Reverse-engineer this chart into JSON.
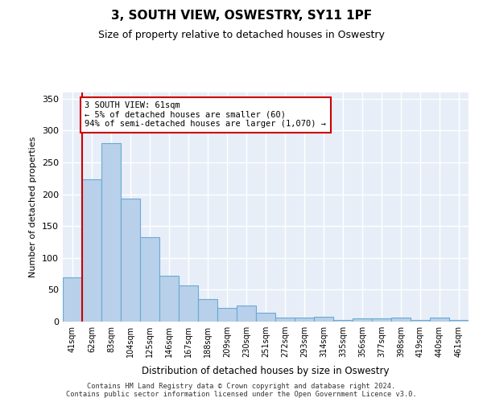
{
  "title": "3, SOUTH VIEW, OSWESTRY, SY11 1PF",
  "subtitle": "Size of property relative to detached houses in Oswestry",
  "xlabel": "Distribution of detached houses by size in Oswestry",
  "ylabel": "Number of detached properties",
  "categories": [
    "41sqm",
    "62sqm",
    "83sqm",
    "104sqm",
    "125sqm",
    "146sqm",
    "167sqm",
    "188sqm",
    "209sqm",
    "230sqm",
    "251sqm",
    "272sqm",
    "293sqm",
    "314sqm",
    "335sqm",
    "356sqm",
    "377sqm",
    "398sqm",
    "419sqm",
    "440sqm",
    "461sqm"
  ],
  "bar_heights": [
    70,
    223,
    280,
    193,
    133,
    72,
    57,
    35,
    22,
    25,
    14,
    6,
    6,
    7,
    3,
    5,
    5,
    6,
    3,
    6,
    3
  ],
  "bar_color": "#b8d0ea",
  "bar_edgecolor": "#6aaad4",
  "annotation_text": "3 SOUTH VIEW: 61sqm\n← 5% of detached houses are smaller (60)\n94% of semi-detached houses are larger (1,070) →",
  "annotation_box_color": "#ffffff",
  "annotation_box_edgecolor": "#cc0000",
  "ylim": [
    0,
    360
  ],
  "yticks": [
    0,
    50,
    100,
    150,
    200,
    250,
    300,
    350
  ],
  "axes_facecolor": "#e8eef8",
  "footer_text": "Contains HM Land Registry data © Crown copyright and database right 2024.\nContains public sector information licensed under the Open Government Licence v3.0.",
  "bin_edges": [
    41,
    62,
    83,
    104,
    125,
    146,
    167,
    188,
    209,
    230,
    251,
    272,
    293,
    314,
    335,
    356,
    377,
    398,
    419,
    440,
    461,
    482
  ],
  "vline_x": 62
}
